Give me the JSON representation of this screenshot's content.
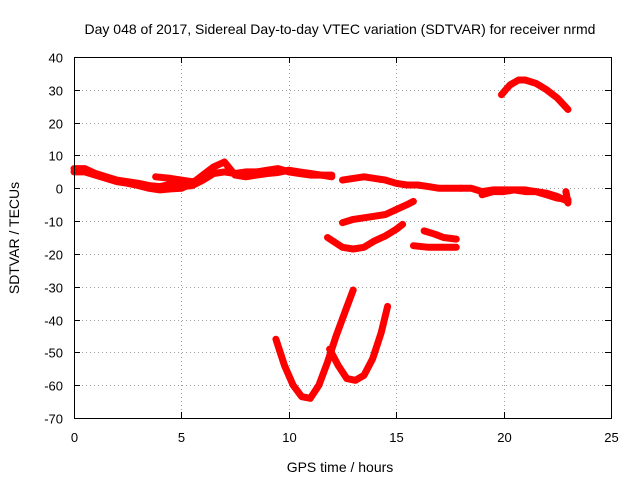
{
  "chart_data": {
    "type": "line",
    "title": "Day 048 of 2017, Sidereal Day-to-day VTEC variation (SDTVAR) for receiver nrmd",
    "xlabel": "GPS time / hours",
    "ylabel": "SDTVAR / TECUs",
    "xlim": [
      0,
      25
    ],
    "ylim": [
      -70,
      40
    ],
    "xticks": [
      0,
      5,
      10,
      15,
      20,
      25
    ],
    "yticks": [
      -70,
      -60,
      -50,
      -40,
      -30,
      -20,
      -10,
      0,
      10,
      20,
      30,
      40
    ],
    "grid": true,
    "color": "#ff0000",
    "series": [
      {
        "x": [
          0,
          0.5,
          1,
          1.5,
          2,
          2.5,
          3,
          3.5,
          4,
          4.5,
          5,
          5.5,
          6,
          6.5,
          7,
          7.5,
          8,
          8.5,
          9,
          9.5,
          10,
          10.5,
          11,
          11.5,
          12
        ],
        "y": [
          6,
          6,
          4.5,
          3.5,
          2.5,
          2,
          1.5,
          0.8,
          0.5,
          1.2,
          0.5,
          0.8,
          2.5,
          4.5,
          5,
          4.5,
          5,
          5,
          5.5,
          6,
          5,
          4.5,
          4,
          4,
          4
        ]
      },
      {
        "x": [
          0,
          0.5,
          1,
          1.5,
          2,
          2.5,
          3,
          3.5,
          4,
          4.5,
          5,
          5.5,
          6,
          6.5,
          7,
          7.5,
          8,
          8.5,
          9,
          9.5,
          10,
          10.5,
          11,
          11.5,
          12
        ],
        "y": [
          5,
          5,
          4,
          3,
          2,
          1.5,
          0.8,
          0,
          -0.5,
          -0.2,
          0,
          1.5,
          4,
          6.5,
          8,
          4,
          3.5,
          4,
          4.5,
          4.8,
          5.5,
          5,
          4.5,
          4,
          3.5
        ]
      },
      {
        "x": [
          3.8,
          4.5,
          5,
          5.5,
          6
        ],
        "y": [
          3.5,
          3,
          2.5,
          2,
          2.5
        ]
      },
      {
        "x": [
          12.5,
          13,
          13.5,
          14,
          14.5,
          15,
          15.5,
          16,
          16.5,
          17,
          17.5,
          18
        ],
        "y": [
          2.5,
          3,
          3.5,
          3,
          2.5,
          1.5,
          1,
          1,
          0.5,
          0,
          0,
          0
        ]
      },
      {
        "x": [
          18,
          18.5,
          19,
          19.5,
          20,
          20.5,
          21,
          21.5,
          22,
          22.5,
          23
        ],
        "y": [
          0,
          0,
          -1,
          -0.5,
          -0.5,
          -0.5,
          -1,
          -1,
          -2,
          -3,
          -3.5
        ]
      },
      {
        "x": [
          19,
          19.5,
          20,
          20.5,
          21,
          21.5,
          22,
          22.5,
          23
        ],
        "y": [
          -2,
          -1,
          -1,
          -0.5,
          -0.5,
          -1,
          -1.5,
          -2.5,
          -4
        ]
      },
      {
        "x": [
          22.9,
          23
        ],
        "y": [
          -1,
          -4.5
        ]
      },
      {
        "x": [
          12.5,
          13,
          13.5,
          14,
          14.5,
          15,
          15.5,
          15.8
        ],
        "y": [
          -10.5,
          -9.5,
          -9,
          -8.5,
          -8,
          -6.5,
          -5,
          -4
        ]
      },
      {
        "x": [
          11.8,
          12.5,
          13,
          13.5,
          14,
          14.5,
          15,
          15.3
        ],
        "y": [
          -15,
          -18,
          -18.5,
          -18,
          -16,
          -14.5,
          -12.5,
          -11
        ]
      },
      {
        "x": [
          16.3,
          16.8,
          17.2,
          17.8
        ],
        "y": [
          -13,
          -14,
          -15,
          -15.5
        ]
      },
      {
        "x": [
          15.8,
          16.5,
          17.2,
          17.8
        ],
        "y": [
          -17.5,
          -18,
          -18,
          -18
        ]
      },
      {
        "x": [
          19.9,
          20.3,
          20.7,
          21,
          21.5,
          22,
          22.5,
          23
        ],
        "y": [
          28.5,
          31.5,
          33,
          33,
          32,
          30,
          27.5,
          24
        ]
      },
      {
        "x": [
          9.4,
          9.8,
          10.2,
          10.6,
          11,
          11.4,
          11.8,
          12.2,
          12.6,
          13
        ],
        "y": [
          -46,
          -54,
          -60,
          -63.5,
          -64,
          -60,
          -53,
          -45,
          -38,
          -31
        ]
      },
      {
        "x": [
          11.9,
          12.3,
          12.7,
          13.1,
          13.5,
          13.9,
          14.3,
          14.6
        ],
        "y": [
          -49,
          -54,
          -58,
          -58.5,
          -57,
          -52,
          -44,
          -36
        ]
      }
    ]
  }
}
